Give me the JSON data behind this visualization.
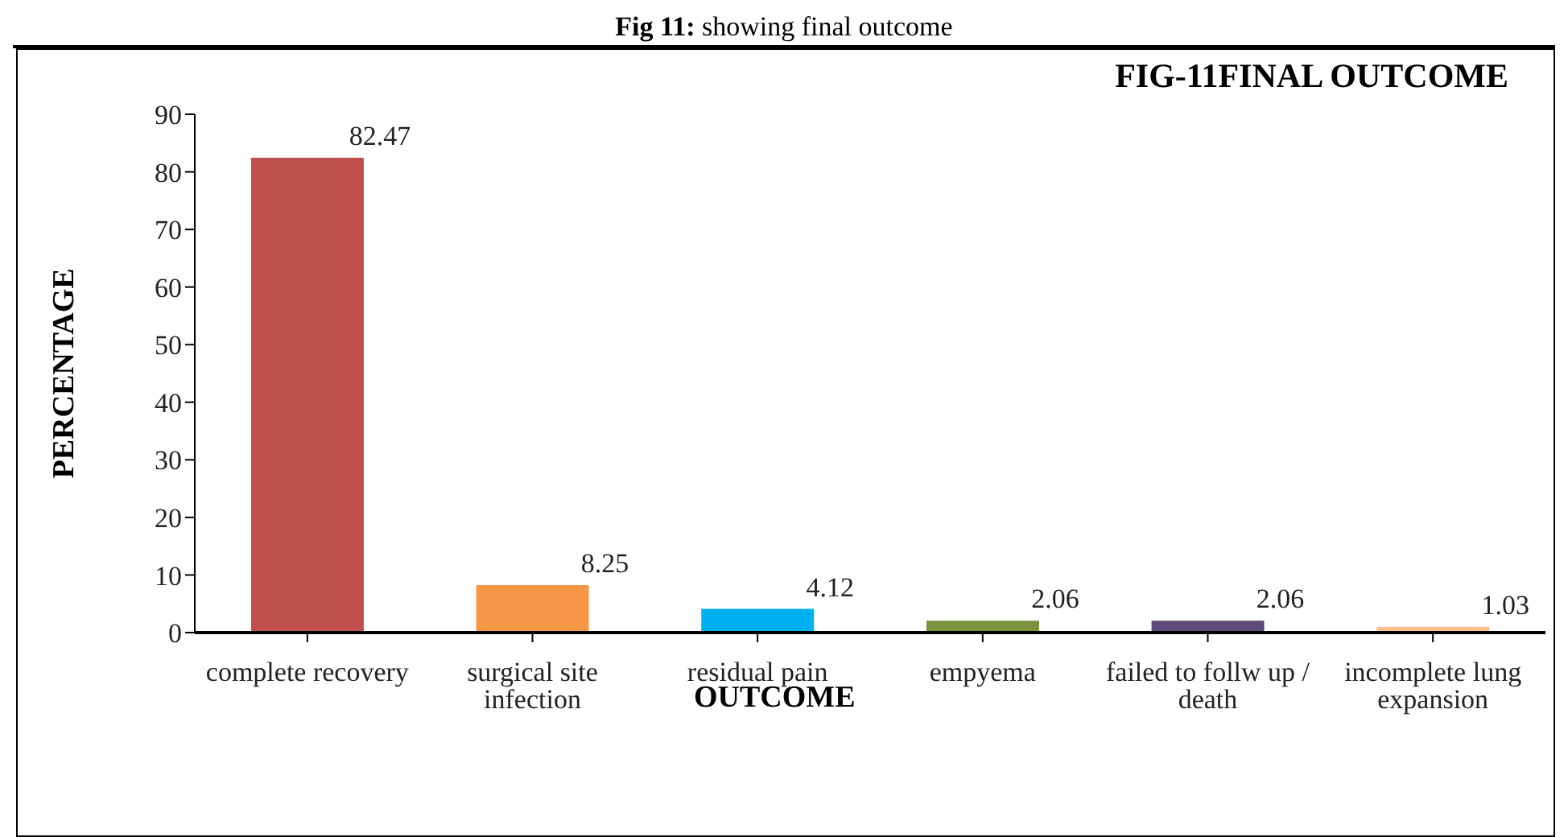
{
  "chart_data": {
    "type": "bar",
    "title": "Fig 11: showing final outcome",
    "subtitle": "FIG-11FINAL OUTCOME",
    "xlabel": "OUTCOME",
    "ylabel": "PERCENTAGE",
    "categories": [
      "complete recovery",
      "surgical site infection",
      "residual pain",
      "empyema",
      "failed to follw up / death",
      "incomplete lung expansion"
    ],
    "values": [
      82.47,
      8.25,
      4.12,
      2.06,
      2.06,
      1.03
    ],
    "colors": [
      "#c0504d",
      "#f79646",
      "#00b0f0",
      "#77933c",
      "#604a7b",
      "#fac090"
    ],
    "ylim": [
      0,
      90
    ],
    "yticks": [
      0,
      10,
      20,
      30,
      40,
      50,
      60,
      70,
      80,
      90
    ],
    "grid": false,
    "data_labels": true
  }
}
